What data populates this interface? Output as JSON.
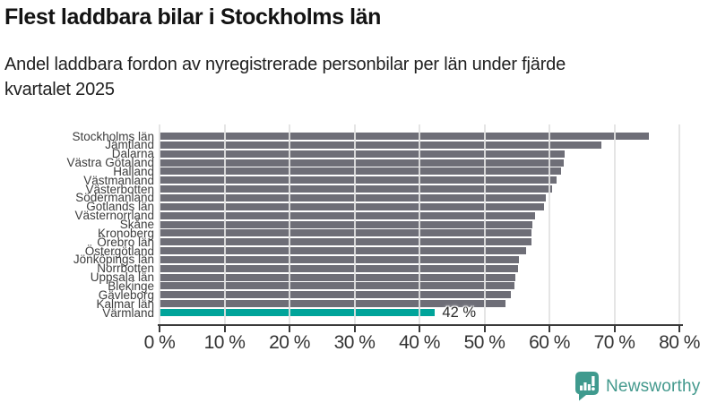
{
  "header": {
    "title": "Flest laddbara bilar i Stockholms län",
    "subtitle": "Andel laddbara fordon av nyregistrerade personbilar per län under fjärde kvartalet 2025",
    "subtitle_lines": [
      "Andel laddbara fordon av nyregistrerade personbilar per län under fjärde",
      "kvartalet 2025"
    ]
  },
  "chart_data": {
    "type": "bar",
    "orientation": "horizontal",
    "title": "Flest laddbara bilar i Stockholms län",
    "categories": [
      "Stockholms län",
      "Jämtland",
      "Dalarna",
      "Västra Götaland",
      "Halland",
      "Västmanland",
      "Västerbotten",
      "Södermanland",
      "Gotlands län",
      "Västernorrland",
      "Skåne",
      "Kronoberg",
      "Örebro län",
      "Östergötland",
      "Jönköpings län",
      "Norrbotten",
      "Uppsala län",
      "Blekinge",
      "Gävleborg",
      "Kalmar län",
      "Värmland"
    ],
    "values": [
      75.3,
      68.0,
      62.4,
      62.2,
      61.8,
      61.1,
      60.4,
      59.5,
      59.2,
      57.8,
      57.4,
      57.3,
      57.3,
      56.4,
      55.3,
      55.2,
      54.8,
      54.6,
      54.1,
      53.2,
      42.4
    ],
    "unit": "%",
    "xlim": [
      0,
      80
    ],
    "x_tick_values": [
      0,
      10,
      20,
      30,
      40,
      50,
      60,
      70,
      80
    ],
    "x_ticks": [
      "0 %",
      "10 %",
      "20 %",
      "30 %",
      "40 %",
      "50 %",
      "60 %",
      "70 %",
      "80 %"
    ],
    "grid": true,
    "legend_position": "none",
    "highlight_category": "Värmland",
    "annotations": [
      {
        "category": "Värmland",
        "text": "42 %"
      }
    ],
    "colors": {
      "bar": "#6e6e77",
      "highlight": "#00a49a",
      "gridline": "#e2e2e2",
      "axis": "#3a3a3a",
      "tick_label": "#333333",
      "category_label": "#3d3d3d"
    }
  },
  "footer": {
    "brand": "Newsworthy",
    "logo_icon": "newsworthy-speech-bubble-chart-icon",
    "brand_color": "#43998d"
  }
}
